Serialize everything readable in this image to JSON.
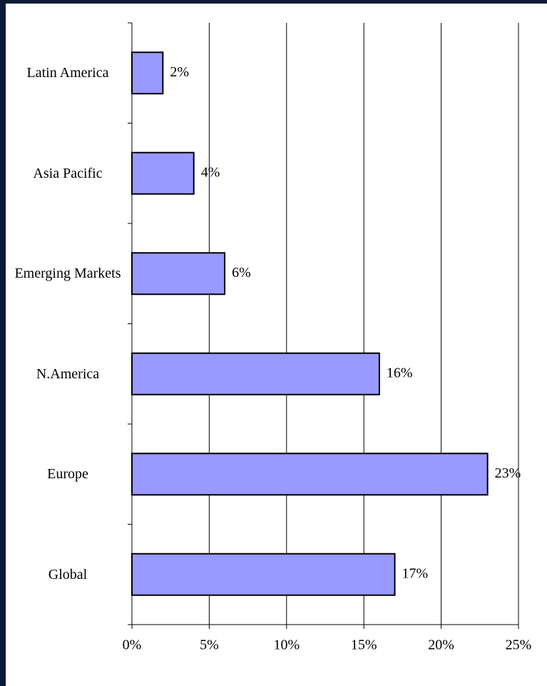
{
  "chart_data": {
    "type": "bar",
    "orientation": "horizontal",
    "categories": [
      "Latin America",
      "Asia Pacific",
      "Emerging Markets",
      "N.America",
      "Europe",
      "Global"
    ],
    "values": [
      2,
      4,
      6,
      16,
      23,
      17
    ],
    "value_labels": [
      "2%",
      "4%",
      "6%",
      "16%",
      "23%",
      "17%"
    ],
    "color": "#9999ff",
    "xlim": [
      0,
      25
    ],
    "xticks": [
      {
        "value": 0,
        "label": "0%"
      },
      {
        "value": 5,
        "label": "5%"
      },
      {
        "value": 10,
        "label": "10%"
      },
      {
        "value": 15,
        "label": "15%"
      },
      {
        "value": 20,
        "label": "20%"
      },
      {
        "value": 25,
        "label": "25%"
      }
    ],
    "grid": true
  }
}
